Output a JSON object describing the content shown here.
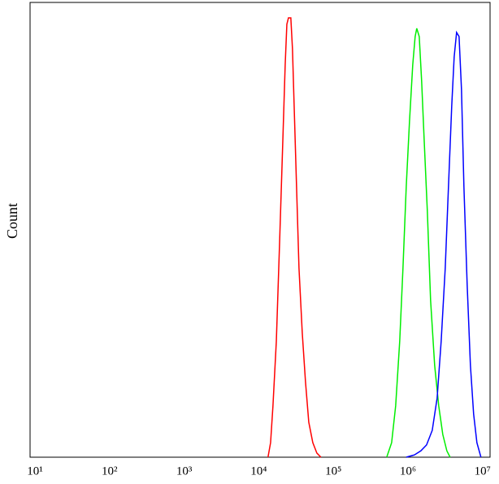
{
  "chart_data": {
    "type": "line",
    "xscale": "log",
    "ylabel": "Count",
    "xlim": [
      8.6,
      12600000
    ],
    "ylim": [
      0,
      100
    ],
    "xticks": [
      {
        "value": 10,
        "label": "10¹"
      },
      {
        "value": 100,
        "label": "10²"
      },
      {
        "value": 1000,
        "label": "10³"
      },
      {
        "value": 10000,
        "label": "10⁴"
      },
      {
        "value": 100000,
        "label": "10⁵"
      },
      {
        "value": 1000000,
        "label": "10⁶"
      },
      {
        "value": 10000000,
        "label": "10⁷"
      }
    ],
    "grid": false,
    "series": [
      {
        "color": "#ff0000",
        "x": [
          13300,
          14400,
          15500,
          17200,
          19000,
          20900,
          22600,
          23800,
          25000,
          26900,
          28300,
          29800,
          32100,
          34600,
          38300,
          42300,
          46800,
          53000,
          60100,
          68100
        ],
        "values": [
          0,
          3.2,
          11.3,
          25.5,
          47,
          68.4,
          86.3,
          95.2,
          96.6,
          96.6,
          89.8,
          77.3,
          59.5,
          41.6,
          27.3,
          16.6,
          7.7,
          3.2,
          0.9,
          0
        ]
      },
      {
        "color": "#00ee00",
        "x": [
          519000,
          604000,
          684000,
          775000,
          857000,
          948000,
          1048000,
          1159000,
          1248000,
          1312000,
          1416000,
          1525000,
          1644000,
          1818000,
          2010000,
          2279000,
          2583000,
          2929000,
          3320000,
          3671000
        ],
        "values": [
          0,
          3.2,
          11.3,
          25.5,
          41.6,
          59.5,
          73.8,
          86.3,
          92.5,
          94.3,
          92.5,
          82.7,
          70.2,
          54.1,
          34.5,
          20.2,
          11.3,
          5,
          1.4,
          0
        ]
      },
      {
        "color": "#0000ff",
        "x": [
          948000,
          1218000,
          1489000,
          1775000,
          2115000,
          2459000,
          2786000,
          3159000,
          3491000,
          3861000,
          4161000,
          4484000,
          4840000,
          5215000,
          5623000,
          6213000,
          6871000,
          7586000,
          8395000,
          9506000
        ],
        "values": [
          0,
          0.5,
          1.4,
          2.7,
          5.9,
          13,
          25.5,
          41.6,
          59.5,
          77.3,
          88,
          93.4,
          92.5,
          80.9,
          59.5,
          38,
          20.2,
          9.5,
          3.2,
          0
        ]
      }
    ]
  }
}
